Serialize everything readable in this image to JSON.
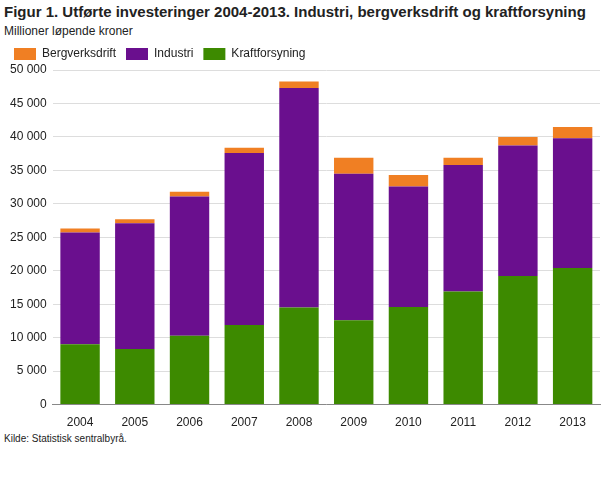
{
  "chart_data": {
    "type": "bar",
    "title": "Figur 1. Utførte investeringer 2004-2013. Industri, bergverksdrift og kraftforsyning",
    "subtitle": "Millioner løpende kroner",
    "source": "Kilde: Statistisk sentralbyrå.",
    "categories": [
      "2004",
      "2005",
      "2006",
      "2007",
      "2008",
      "2009",
      "2010",
      "2011",
      "2012",
      "2013"
    ],
    "series": [
      {
        "name": "Kraftforsyning",
        "color": "#3d8a00",
        "values": [
          9000,
          8300,
          10300,
          11900,
          14500,
          12600,
          14600,
          16900,
          19200,
          20400
        ]
      },
      {
        "name": "Industri",
        "color": "#6a0f8e",
        "values": [
          16700,
          18800,
          20800,
          25700,
          32800,
          21900,
          18000,
          18900,
          19500,
          19400
        ]
      },
      {
        "name": "Bergverksdrift",
        "color": "#f07f23",
        "values": [
          600,
          600,
          700,
          800,
          1000,
          2400,
          1700,
          1100,
          1300,
          1700
        ]
      }
    ],
    "stacked": true,
    "ylim": [
      0,
      50000
    ],
    "yticks": [
      0,
      {
        "value": 5000,
        "label": "5 000"
      },
      {
        "value": 10000,
        "label": "10 000"
      },
      {
        "value": 15000,
        "label": "15 000"
      },
      {
        "value": 20000,
        "label": "20 000"
      },
      {
        "value": 25000,
        "label": "25 000"
      },
      {
        "value": 30000,
        "label": "30 000"
      },
      {
        "value": 35000,
        "label": "35 000"
      },
      {
        "value": 40000,
        "label": "40 000"
      },
      {
        "value": 45000,
        "label": "45 000"
      },
      {
        "value": 50000,
        "label": "50 000"
      }
    ],
    "grid": true,
    "legend": "upper left"
  }
}
